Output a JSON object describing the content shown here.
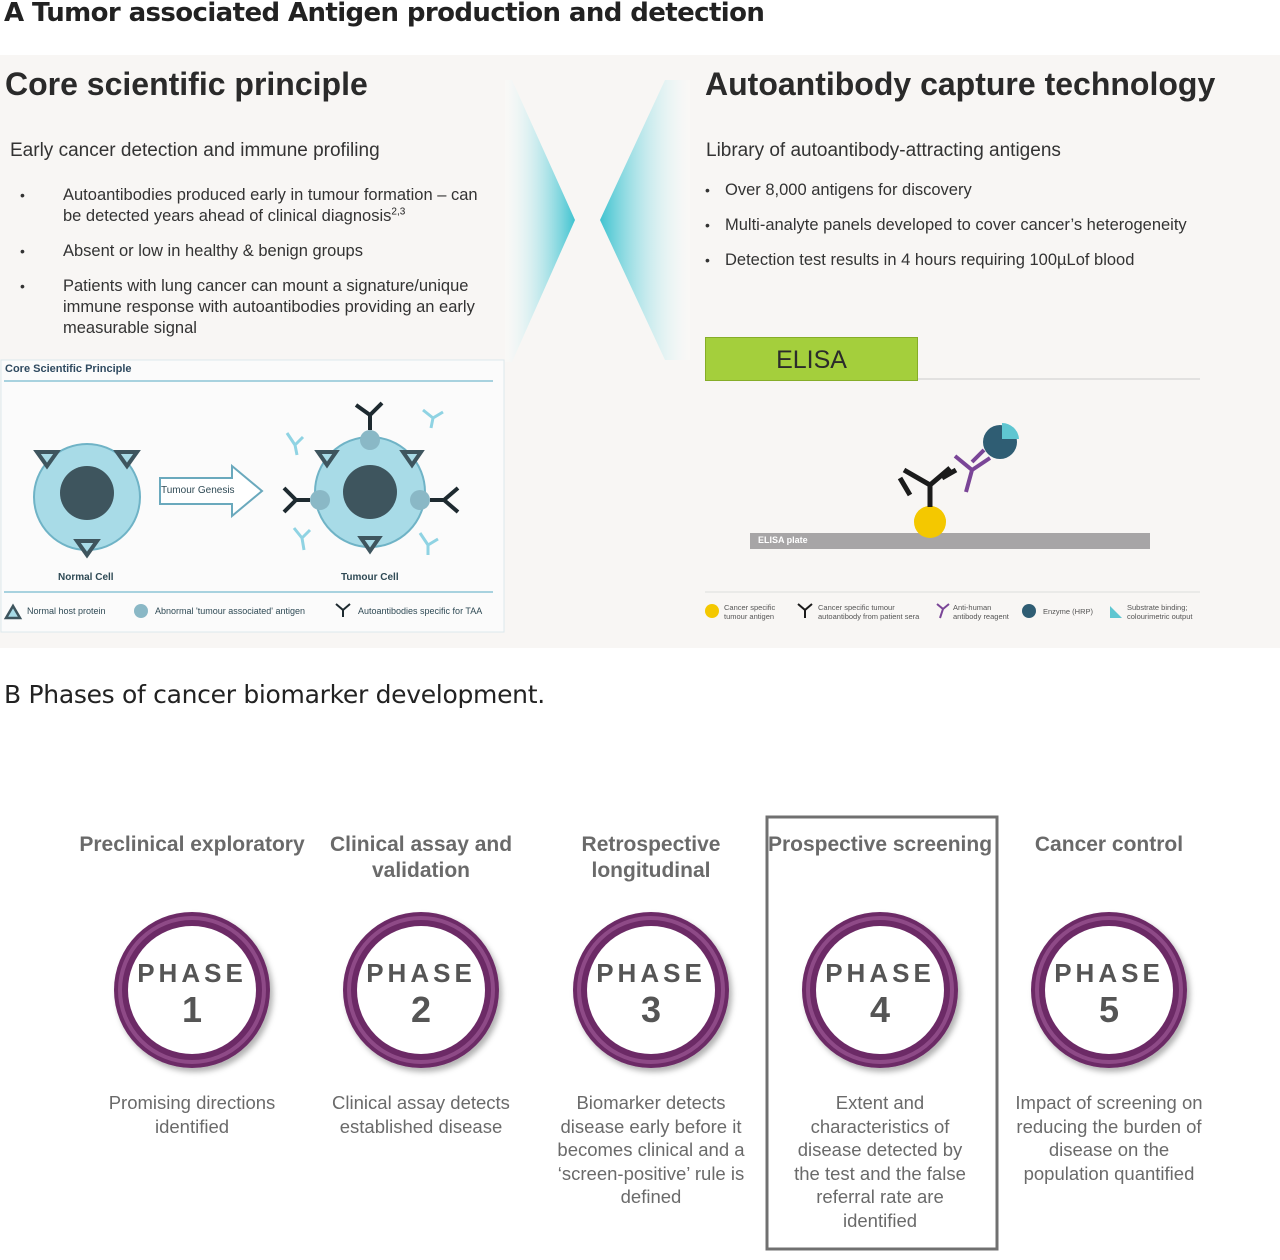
{
  "panel_a": {
    "heading": "A Tumor associated Antigen production and detection",
    "left": {
      "title": "Core scientific principle",
      "subtitle": "Early cancer detection and immune profiling",
      "bullets": [
        {
          "text": "Autoantibodies produced early in tumour formation – can be detected years ahead of clinical diagnosis",
          "superscript": "2,3"
        },
        {
          "text": "Absent or low in healthy & benign groups"
        },
        {
          "text": "Patients with lung cancer can mount a signature/unique immune response with autoantibodies providing an early measurable signal"
        }
      ],
      "diagram": {
        "title": "Core Scientific Principle",
        "arrow_label": "Tumour Genesis",
        "normal_cell": "Normal Cell",
        "tumour_cell": "Tumour Cell",
        "legend": [
          "Normal host protein",
          "Abnormal 'tumour associated' antigen",
          "Autoantibodies specific for TAA"
        ]
      }
    },
    "right": {
      "title": "Autoantibody capture technology",
      "subtitle": "Library of autoantibody-attracting antigens",
      "bullets": [
        {
          "text": "Over 8,000 antigens for discovery"
        },
        {
          "text": "Multi-analyte panels developed to cover cancer’s heterogeneity"
        },
        {
          "text": "Detection test results in 4 hours requiring 100µLof blood"
        }
      ],
      "diagram": {
        "label": "ELISA",
        "plate": "ELISA plate",
        "legend": [
          "Cancer specific tumour antigen",
          "Cancer specific tumour autoantibody from patient sera",
          "Anti-human antibody reagent",
          "Enzyme (HRP)",
          "Substrate binding; colourimetric output"
        ]
      }
    }
  },
  "panel_b": {
    "heading": "B Phases of cancer biomarker development.",
    "phases": [
      {
        "title": "Preclinical exploratory",
        "word": "PHASE",
        "number": 1,
        "description": "Promising directions identified"
      },
      {
        "title": "Clinical assay and validation",
        "word": "PHASE",
        "number": 2,
        "description": "Clinical assay detects established disease"
      },
      {
        "title": "Retrospective longitudinal",
        "word": "PHASE",
        "number": 3,
        "description": "Biomarker detects disease early before it becomes clinical and a ‘screen-positive’ rule is defined"
      },
      {
        "title": "Prospective screening",
        "word": "PHASE",
        "number": 4,
        "description": "Extent and characteristics of disease detected by the test and the false referral rate are identified",
        "highlighted": true
      },
      {
        "title": "Cancer control",
        "word": "PHASE",
        "number": 5,
        "description": "Impact of screening on reducing the burden of disease on the population quantified"
      }
    ]
  }
}
